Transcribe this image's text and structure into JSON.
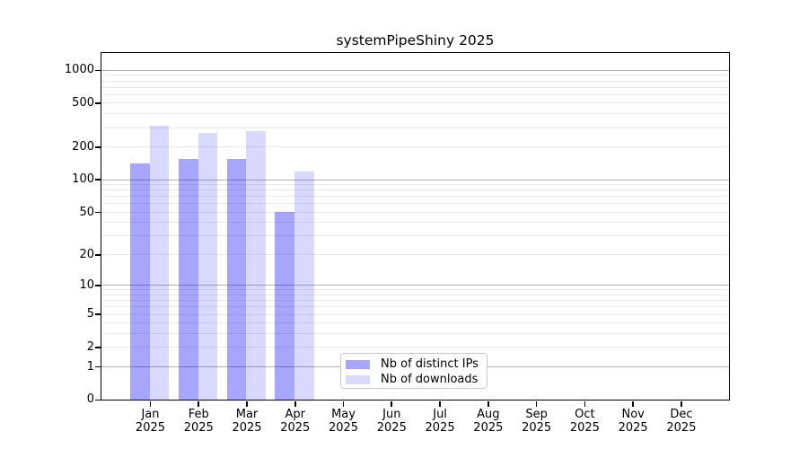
{
  "chart_data": {
    "type": "bar",
    "title": "systemPipeShiny 2025",
    "categories": [
      "Jan",
      "Feb",
      "Mar",
      "Apr",
      "May",
      "Jun",
      "Jul",
      "Aug",
      "Sep",
      "Oct",
      "Nov",
      "Dec"
    ],
    "x_axis": {
      "year_label": "2025"
    },
    "y_axis": {
      "scale": "log1p",
      "labeled_ticks": [
        0,
        1,
        2,
        5,
        10,
        20,
        50,
        100,
        200,
        500,
        1000
      ],
      "major_gridlines": [
        1,
        10,
        100,
        1000
      ],
      "top_value": 1430,
      "ylim": [
        0,
        1430
      ],
      "grid": true
    },
    "series": [
      {
        "name": "Nb of distinct IPs",
        "color": "rgba(0,0,255,0.35)",
        "hex_on_white": "#a6a6ff",
        "values": [
          140,
          152,
          154,
          50,
          null,
          null,
          null,
          null,
          null,
          null,
          null,
          null
        ]
      },
      {
        "name": "Nb of downloads",
        "color": "rgba(0,0,255,0.15)",
        "hex_on_white": "#d9d9ff",
        "values": [
          309,
          265,
          276,
          118,
          null,
          null,
          null,
          null,
          null,
          null,
          null,
          null
        ]
      }
    ],
    "legend_position": "lower-center inside plot"
  },
  "colors": {
    "background": "#ffffff",
    "spine": "#000000",
    "major_grid": "#b0b0b0",
    "minor_grid": "#e9e9e9",
    "text": "#000000",
    "legend_border": "#c9c9c9"
  }
}
